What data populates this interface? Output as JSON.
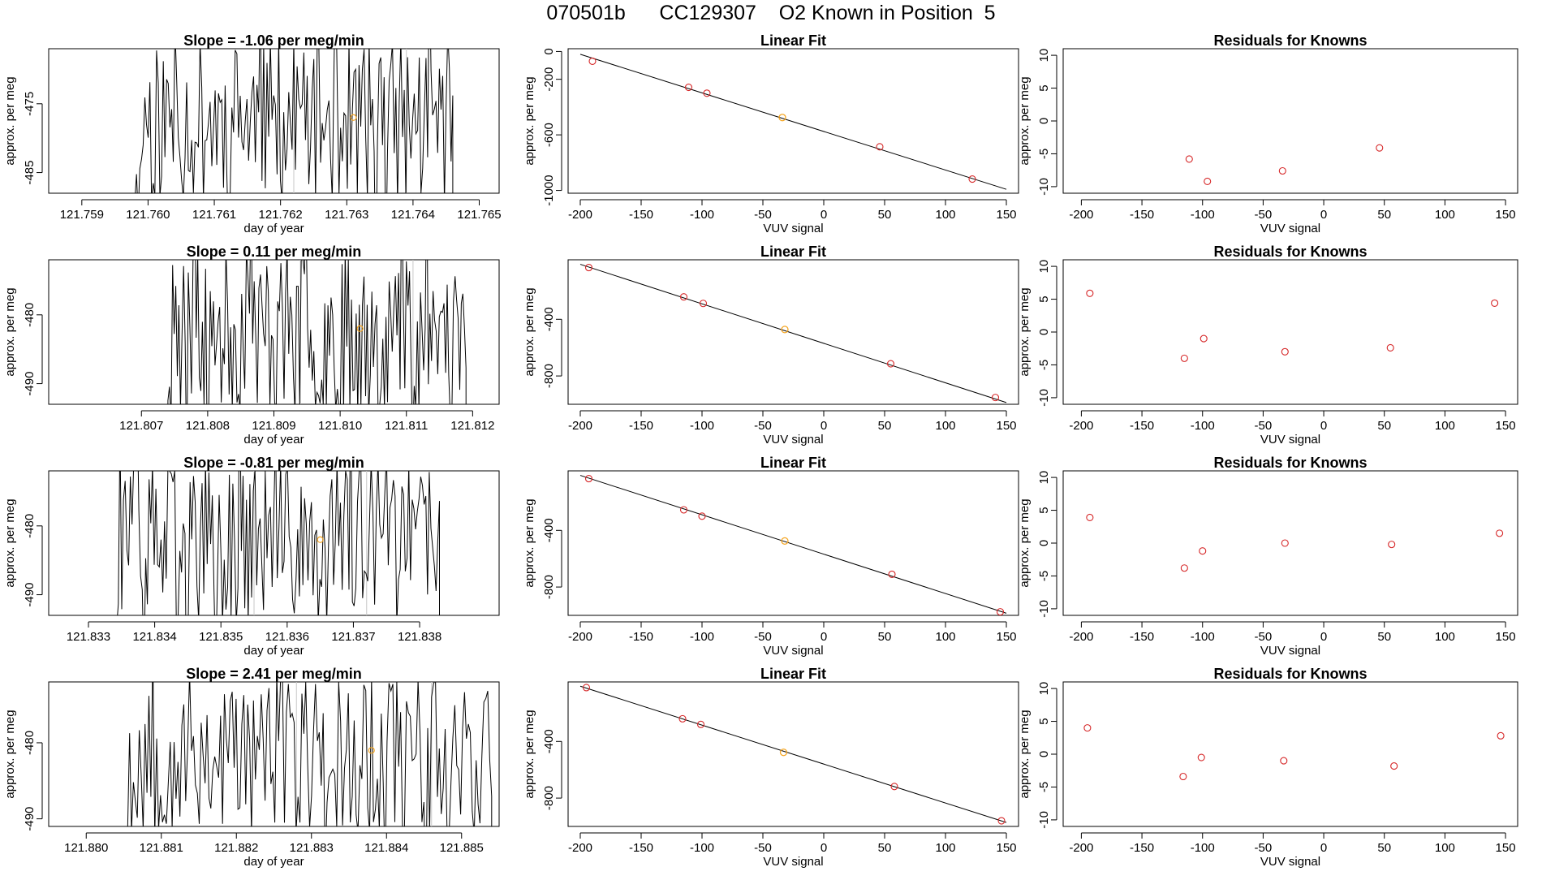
{
  "page_title": "070501b      CC129307    O2 Known in Position  5",
  "colors": {
    "line": "#000000",
    "point_red": "#d62728",
    "point_orange": "#f5a623",
    "vline": "#c8c8c8"
  },
  "chart_data": [
    {
      "type": "line",
      "row": 0,
      "col": 0,
      "title": "Slope =  -1.06  per meg/min",
      "xlabel": "day of year",
      "ylabel": "approx. per meg",
      "xlim": [
        121.7585,
        121.7653
      ],
      "ylim": [
        -488,
        -467
      ],
      "xticks": [
        121.759,
        121.76,
        121.761,
        121.762,
        121.763,
        121.764,
        121.765
      ],
      "xtick_labels": [
        "121.759",
        "121.760",
        "121.761",
        "121.762",
        "121.763",
        "121.764",
        "121.765"
      ],
      "yticks": [
        -475,
        -485
      ],
      "ytick_labels": [
        "-475",
        "-485"
      ],
      "start": 121.7598,
      "end": 121.7646,
      "seed": 11,
      "vlines": [
        121.7622,
        121.7639
      ],
      "highlight": {
        "x": 121.7631,
        "y": -477
      }
    },
    {
      "type": "scatter",
      "row": 0,
      "col": 1,
      "title": "Linear Fit",
      "xlabel": "VUV signal",
      "ylabel": "approx. per meg",
      "xlim": [
        -210,
        160
      ],
      "ylim": [
        -1020,
        20
      ],
      "xticks": [
        -200,
        -150,
        -100,
        -50,
        0,
        50,
        100,
        150
      ],
      "xtick_labels": [
        "-200",
        "-150",
        "-100",
        "-50",
        "0",
        "50",
        "100",
        "150"
      ],
      "yticks": [
        0,
        -200,
        -600,
        -1000
      ],
      "ytick_labels": [
        "0",
        "-200",
        "-600",
        "-1000"
      ],
      "fit_line": {
        "x": [
          -200,
          150
        ],
        "y": [
          -20,
          -992
        ]
      },
      "points": {
        "x": [
          -190,
          -111,
          -96,
          46,
          122
        ],
        "y": [
          -70,
          -258,
          -300,
          -686,
          -918
        ]
      },
      "highlight": {
        "x": -34,
        "y": -475
      }
    },
    {
      "type": "scatter",
      "row": 0,
      "col": 2,
      "title": "Residuals for Knowns",
      "xlabel": "VUV signal",
      "ylabel": "approx. per meg",
      "xlim": [
        -215,
        160
      ],
      "ylim": [
        -11,
        11
      ],
      "xticks": [
        -200,
        -150,
        -100,
        -50,
        0,
        50,
        100,
        150
      ],
      "xtick_labels": [
        "-200",
        "-150",
        "-100",
        "-50",
        "0",
        "50",
        "100",
        "150"
      ],
      "yticks": [
        10,
        5,
        0,
        -5,
        -10
      ],
      "ytick_labels": [
        "10",
        "5",
        "0",
        "-5",
        "-10"
      ],
      "points": {
        "x": [
          -111,
          -96,
          -34,
          46
        ],
        "y": [
          -5.8,
          -9.2,
          -7.6,
          -4.1
        ]
      }
    },
    {
      "type": "line",
      "row": 1,
      "col": 0,
      "title": "Slope =  0.11  per meg/min",
      "xlabel": "day of year",
      "ylabel": "approx. per meg",
      "xlim": [
        121.8056,
        121.8124
      ],
      "ylim": [
        -493,
        -472
      ],
      "xticks": [
        121.807,
        121.808,
        121.809,
        121.81,
        121.811,
        121.812
      ],
      "xtick_labels": [
        "121.807",
        "121.808",
        "121.809",
        "121.810",
        "121.811",
        "121.812"
      ],
      "yticks": [
        -480,
        -490
      ],
      "ytick_labels": [
        "-480",
        "-490"
      ],
      "start": 121.8074,
      "end": 121.8119,
      "seed": 23,
      "vlines": [
        121.8094,
        121.8111
      ],
      "highlight": {
        "x": 121.8103,
        "y": -482
      }
    },
    {
      "type": "scatter",
      "row": 1,
      "col": 1,
      "title": "Linear Fit",
      "xlabel": "VUV signal",
      "ylabel": "approx. per meg",
      "xlim": [
        -210,
        160
      ],
      "ylim": [
        -1000,
        20
      ],
      "xticks": [
        -200,
        -150,
        -100,
        -50,
        0,
        50,
        100,
        150
      ],
      "xtick_labels": [
        "-200",
        "-150",
        "-100",
        "-50",
        "0",
        "50",
        "100",
        "150"
      ],
      "yticks": [
        -400,
        -800
      ],
      "ytick_labels": [
        "-400",
        "-800"
      ],
      "fit_line": {
        "x": [
          -200,
          150
        ],
        "y": [
          -12,
          -988
        ]
      },
      "points": {
        "x": [
          -193,
          -115,
          -99,
          55,
          141
        ],
        "y": [
          -35,
          -242,
          -288,
          -714,
          -952
        ]
      },
      "highlight": {
        "x": -32,
        "y": -472
      }
    },
    {
      "type": "scatter",
      "row": 1,
      "col": 2,
      "title": "Residuals for Knowns",
      "xlabel": "VUV signal",
      "ylabel": "approx. per meg",
      "xlim": [
        -215,
        160
      ],
      "ylim": [
        -11,
        11
      ],
      "xticks": [
        -200,
        -150,
        -100,
        -50,
        0,
        50,
        100,
        150
      ],
      "xtick_labels": [
        "-200",
        "-150",
        "-100",
        "-50",
        "0",
        "50",
        "100",
        "150"
      ],
      "yticks": [
        10,
        5,
        0,
        -5,
        -10
      ],
      "ytick_labels": [
        "10",
        "5",
        "0",
        "-5",
        "-10"
      ],
      "points": {
        "x": [
          -193,
          -115,
          -99,
          -32,
          55,
          141
        ],
        "y": [
          5.9,
          -4.0,
          -1.0,
          -3.0,
          -2.4,
          4.4
        ]
      }
    },
    {
      "type": "line",
      "row": 2,
      "col": 0,
      "title": "Slope =  -0.81  per meg/min",
      "xlabel": "day of year",
      "ylabel": "approx. per meg",
      "xlim": [
        121.8324,
        121.8392
      ],
      "ylim": [
        -493,
        -472
      ],
      "xticks": [
        121.833,
        121.834,
        121.835,
        121.836,
        121.837,
        121.838
      ],
      "xtick_labels": [
        "121.833",
        "121.834",
        "121.835",
        "121.836",
        "121.837",
        "121.838"
      ],
      "yticks": [
        -480,
        -490
      ],
      "ytick_labels": [
        "-480",
        "-490"
      ],
      "start": 121.8334,
      "end": 121.8383,
      "seed": 37,
      "vlines": [
        121.8355,
        121.8372
      ],
      "highlight": {
        "x": 121.8365,
        "y": -482
      }
    },
    {
      "type": "scatter",
      "row": 2,
      "col": 1,
      "title": "Linear Fit",
      "xlabel": "VUV signal",
      "ylabel": "approx. per meg",
      "xlim": [
        -210,
        160
      ],
      "ylim": [
        -1000,
        20
      ],
      "xticks": [
        -200,
        -150,
        -100,
        -50,
        0,
        50,
        100,
        150
      ],
      "xtick_labels": [
        "-200",
        "-150",
        "-100",
        "-50",
        "0",
        "50",
        "100",
        "150"
      ],
      "yticks": [
        -400,
        -800
      ],
      "ytick_labels": [
        "-400",
        "-800"
      ],
      "fit_line": {
        "x": [
          -200,
          150
        ],
        "y": [
          -12,
          -985
        ]
      },
      "points": {
        "x": [
          -193,
          -115,
          -100,
          56,
          145
        ],
        "y": [
          -35,
          -255,
          -300,
          -710,
          -975
        ]
      },
      "highlight": {
        "x": -32,
        "y": -475
      }
    },
    {
      "type": "scatter",
      "row": 2,
      "col": 2,
      "title": "Residuals for Knowns",
      "xlabel": "VUV signal",
      "ylabel": "approx. per meg",
      "xlim": [
        -215,
        160
      ],
      "ylim": [
        -11,
        11
      ],
      "xticks": [
        -200,
        -150,
        -100,
        -50,
        0,
        50,
        100,
        150
      ],
      "xtick_labels": [
        "-200",
        "-150",
        "-100",
        "-50",
        "0",
        "50",
        "100",
        "150"
      ],
      "yticks": [
        10,
        5,
        0,
        -5,
        -10
      ],
      "ytick_labels": [
        "10",
        "5",
        "0",
        "-5",
        "-10"
      ],
      "points": {
        "x": [
          -193,
          -115,
          -100,
          -32,
          56,
          145
        ],
        "y": [
          3.9,
          -3.8,
          -1.2,
          0.0,
          -0.2,
          1.5
        ]
      }
    },
    {
      "type": "line",
      "row": 3,
      "col": 0,
      "title": "Slope =  2.41  per meg/min",
      "xlabel": "day of year",
      "ylabel": "approx. per meg",
      "xlim": [
        121.8795,
        121.8855
      ],
      "ylim": [
        -491,
        -472
      ],
      "xticks": [
        121.88,
        121.881,
        121.882,
        121.883,
        121.884,
        121.885
      ],
      "xtick_labels": [
        "121.880",
        "121.881",
        "121.882",
        "121.883",
        "121.884",
        "121.885"
      ],
      "yticks": [
        -480,
        -490
      ],
      "ytick_labels": [
        "-480",
        "-490"
      ],
      "start": 121.8805,
      "end": 121.8854,
      "seed": 53,
      "vlines": [
        121.8828,
        121.8846
      ],
      "highlight": {
        "x": 121.8838,
        "y": -481
      }
    },
    {
      "type": "scatter",
      "row": 3,
      "col": 1,
      "title": "Linear Fit",
      "xlabel": "VUV signal",
      "ylabel": "approx. per meg",
      "xlim": [
        -210,
        160
      ],
      "ylim": [
        -1000,
        20
      ],
      "xticks": [
        -200,
        -150,
        -100,
        -50,
        0,
        50,
        100,
        150
      ],
      "xtick_labels": [
        "-200",
        "-150",
        "-100",
        "-50",
        "0",
        "50",
        "100",
        "150"
      ],
      "yticks": [
        -400,
        -800
      ],
      "ytick_labels": [
        "-400",
        "-800"
      ],
      "fit_line": {
        "x": [
          -200,
          150
        ],
        "y": [
          -10,
          -972
        ]
      },
      "points": {
        "x": [
          -195,
          -116,
          -101,
          58,
          146
        ],
        "y": [
          -20,
          -240,
          -280,
          -718,
          -960
        ]
      },
      "highlight": {
        "x": -33,
        "y": -477
      }
    },
    {
      "type": "scatter",
      "row": 3,
      "col": 2,
      "title": "Residuals for Knowns",
      "xlabel": "VUV signal",
      "ylabel": "approx. per meg",
      "xlim": [
        -215,
        160
      ],
      "ylim": [
        -11,
        11
      ],
      "xticks": [
        -200,
        -150,
        -100,
        -50,
        0,
        50,
        100,
        150
      ],
      "xtick_labels": [
        "-200",
        "-150",
        "-100",
        "-50",
        "0",
        "50",
        "100",
        "150"
      ],
      "yticks": [
        10,
        5,
        0,
        -5,
        -10
      ],
      "ytick_labels": [
        "10",
        "5",
        "0",
        "-5",
        "-10"
      ],
      "points": {
        "x": [
          -195,
          -116,
          -101,
          -33,
          58,
          146
        ],
        "y": [
          4.0,
          -3.4,
          -0.5,
          -1.0,
          -1.8,
          2.8
        ]
      }
    }
  ]
}
